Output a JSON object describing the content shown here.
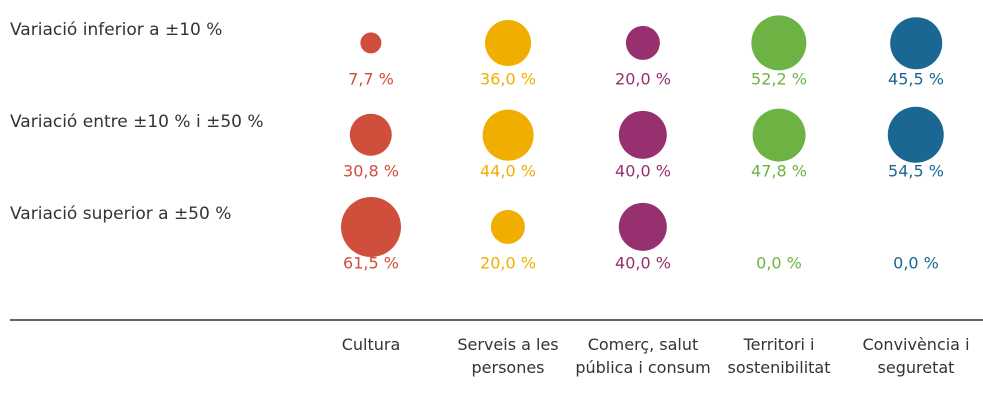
{
  "chart_data": {
    "type": "bubble",
    "rows": [
      "Variació inferior a ±10 %",
      "Variació entre ±10 % i ±50 %",
      "Variació superior a ±50 %"
    ],
    "series": [
      {
        "name": "Cultura",
        "color": "#cf4f3c",
        "values": [
          7.7,
          30.8,
          61.5
        ],
        "value_labels": [
          "7,7 %",
          "30,8 %",
          "61,5 %"
        ]
      },
      {
        "name": "Serveis a les persones",
        "color": "#f0ae00",
        "values": [
          36.0,
          44.0,
          20.0
        ],
        "value_labels": [
          "36,0 %",
          "44,0 %",
          "20,0 %"
        ]
      },
      {
        "name": "Comerç, salut pública i consum",
        "color": "#96306e",
        "values": [
          20.0,
          40.0,
          40.0
        ],
        "value_labels": [
          "20,0 %",
          "40,0 %",
          "40,0 %"
        ]
      },
      {
        "name": "Territori i sostenibilitat",
        "color": "#6db344",
        "values": [
          52.2,
          47.8,
          0.0
        ],
        "value_labels": [
          "52,2 %",
          "47,8 %",
          "0,0 %"
        ]
      },
      {
        "name": "Convivència i seguretat",
        "color": "#1b6794",
        "values": [
          45.5,
          54.5,
          0.0
        ],
        "value_labels": [
          "45,5 %",
          "54,5 %",
          "0,0 %"
        ]
      }
    ]
  }
}
